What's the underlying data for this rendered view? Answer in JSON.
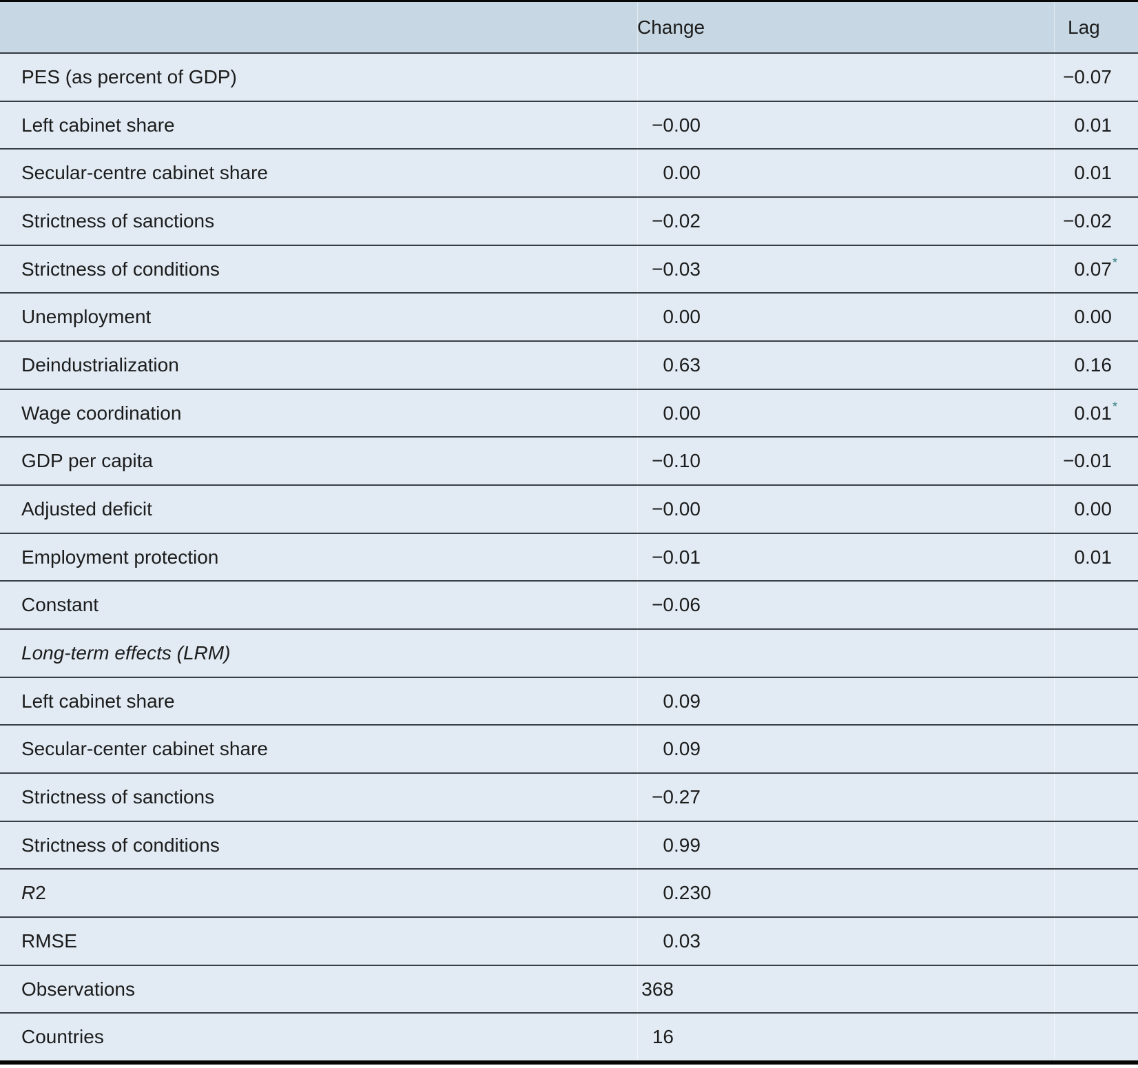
{
  "table": {
    "columns": {
      "change": "Change",
      "lag": "Lag"
    },
    "colors": {
      "header_bg": "#c7d7e3",
      "row_bg": "#e2ebf4",
      "separator": "#383f44",
      "outer_border": "#050505",
      "text": "#1c1c1c",
      "significance_star": "#2e7d7e"
    },
    "rows": [
      {
        "label": "PES (as percent of GDP)",
        "change": "",
        "lag": "−0.07"
      },
      {
        "label": "Left cabinet share",
        "change": "−0.00",
        "lag": "0.01"
      },
      {
        "label": "Secular-centre cabinet share",
        "change": "0.00",
        "lag": "0.01"
      },
      {
        "label": "Strictness of sanctions",
        "change": "−0.02",
        "lag": "−0.02"
      },
      {
        "label": "Strictness of conditions",
        "change": "−0.03",
        "lag": "0.07",
        "lag_star": true
      },
      {
        "label": "Unemployment",
        "change": "0.00",
        "lag": "0.00"
      },
      {
        "label": "Deindustrialization",
        "change": "0.63",
        "lag": "0.16"
      },
      {
        "label": "Wage coordination",
        "change": "0.00",
        "lag": "0.01",
        "lag_star": true
      },
      {
        "label": "GDP per capita",
        "change": "−0.10",
        "lag": "−0.01"
      },
      {
        "label": "Adjusted deficit",
        "change": "−0.00",
        "lag": "0.00"
      },
      {
        "label": "Employment protection",
        "change": "−0.01",
        "lag": "0.01"
      },
      {
        "label": "Constant",
        "change": "−0.06",
        "lag": ""
      },
      {
        "label": "Long-term effects (LRM)",
        "italic": true,
        "change": "",
        "lag": ""
      },
      {
        "label": "Left cabinet share",
        "change": "0.09",
        "lag": ""
      },
      {
        "label": "Secular-center cabinet share",
        "change": "0.09",
        "lag": ""
      },
      {
        "label": "Strictness of sanctions",
        "change": "−0.27",
        "lag": ""
      },
      {
        "label": "Strictness of conditions",
        "change": "0.99",
        "lag": ""
      },
      {
        "label_parts": [
          {
            "text": "R",
            "italic": true
          },
          {
            "text": "2",
            "italic": false
          }
        ],
        "change": "0.230",
        "lag": ""
      },
      {
        "label": "RMSE",
        "change": "0.03",
        "lag": ""
      },
      {
        "label": "Observations",
        "change": "368",
        "lag": ""
      },
      {
        "label": "Countries",
        "change": "16",
        "lag": ""
      }
    ]
  }
}
